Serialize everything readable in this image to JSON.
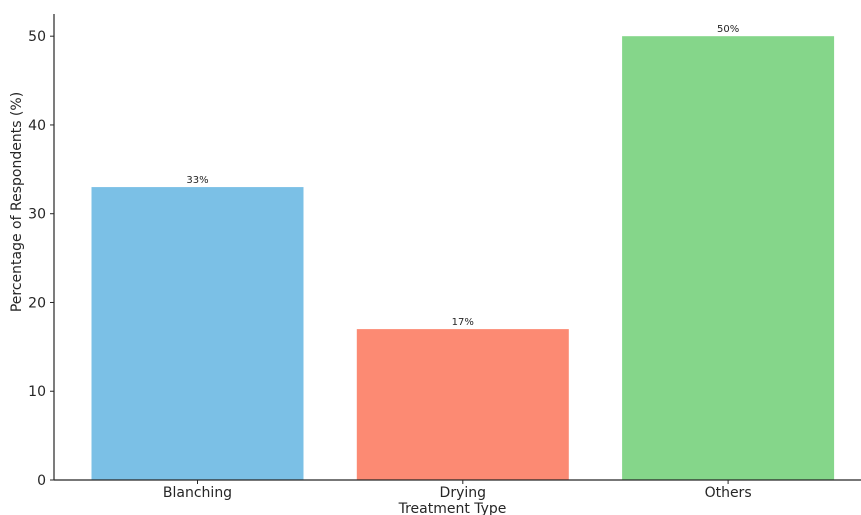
{
  "chart_data": {
    "type": "bar",
    "title": "",
    "xlabel": "Treatment Type",
    "ylabel": "Percentage of Respondents (%)",
    "categories": [
      "Blanching",
      "Drying",
      "Others"
    ],
    "values": [
      33,
      17,
      50
    ],
    "data_labels": [
      "33%",
      "17%",
      "50%"
    ],
    "colors": [
      "#7bc0e6",
      "#fc8a73",
      "#85d68a"
    ],
    "ylim": [
      0,
      52.5
    ],
    "yticks": [
      0,
      10,
      20,
      30,
      40,
      50
    ],
    "grid": false,
    "legend": "none"
  }
}
